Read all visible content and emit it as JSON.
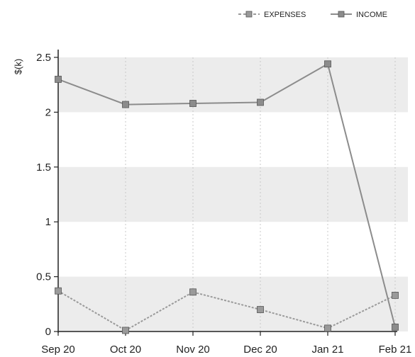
{
  "chart_data": {
    "type": "line",
    "categories": [
      "Sep 20",
      "Oct 20",
      "Nov 20",
      "Dec 20",
      "Jan 21",
      "Feb 21"
    ],
    "series": [
      {
        "name": "EXPENSES",
        "values": [
          0.37,
          0.01,
          0.36,
          0.2,
          0.03,
          0.33
        ],
        "color": "#9a9a9a",
        "dashed": true
      },
      {
        "name": "INCOME",
        "values": [
          2.3,
          2.07,
          2.08,
          2.09,
          2.44,
          0.04
        ],
        "color": "#8c8c8c",
        "dashed": false
      }
    ],
    "ylabel": "$(k)",
    "xlabel": "",
    "ylim": [
      0,
      2.5
    ],
    "yticks": [
      "0",
      "0.5",
      "1",
      "1.5",
      "2",
      "2.5"
    ],
    "grid": "alternating horizontal bands with dotted vertical gridlines",
    "legend": "top-right"
  }
}
